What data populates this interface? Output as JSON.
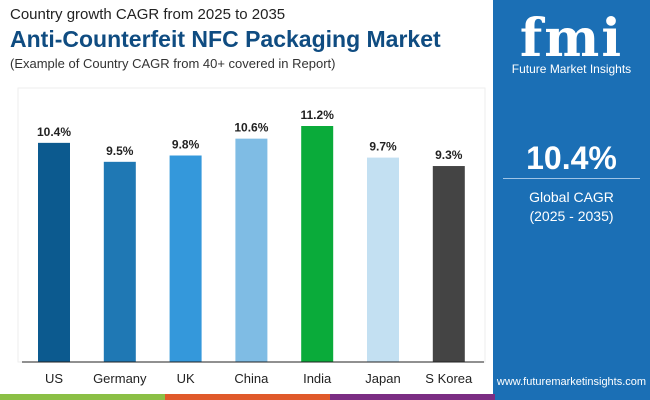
{
  "header": {
    "subtitle": "Country growth CAGR from 2025 to 2035",
    "title": "Anti-Counterfeit NFC Packaging Market",
    "note": "(Example of Country CAGR from 40+ covered in Report)"
  },
  "panel": {
    "logo": "fmi",
    "logo_sub": "Future Market Insights",
    "value": "10.4%",
    "label": "Global CAGR",
    "period": "(2025 - 2035)",
    "url": "www.futuremarketinsights.com"
  },
  "chart_data": {
    "type": "bar",
    "categories": [
      "US",
      "Germany",
      "UK",
      "China",
      "India",
      "Japan",
      "S Korea"
    ],
    "values": [
      10.4,
      9.5,
      9.8,
      10.6,
      11.2,
      9.7,
      9.3
    ],
    "data_labels": [
      "10.4%",
      "9.5%",
      "9.8%",
      "10.6%",
      "11.2%",
      "9.7%",
      "9.3%"
    ],
    "colors": [
      "#0c5a8f",
      "#1f78b4",
      "#3498db",
      "#7fbce4",
      "#0aab3a",
      "#c3e0f2",
      "#444444"
    ],
    "ylim": [
      0,
      11.2
    ],
    "grid": false
  },
  "stripes": [
    "#8bbf45",
    "#e0592a",
    "#7b2d83",
    "#1b6fb5"
  ]
}
